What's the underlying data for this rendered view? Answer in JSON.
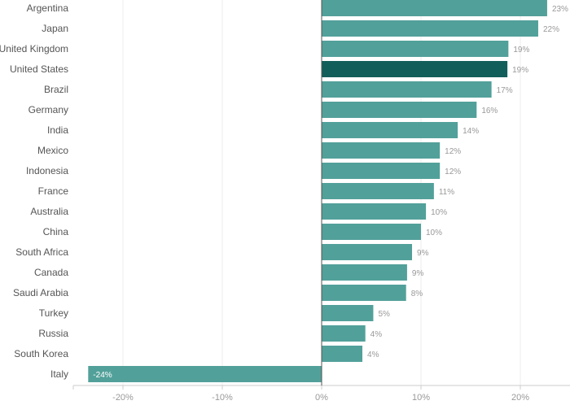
{
  "chart_data": {
    "type": "bar",
    "orientation": "horizontal",
    "categories": [
      "Argentina",
      "Japan",
      "United Kingdom",
      "United States",
      "Brazil",
      "Germany",
      "India",
      "Mexico",
      "Indonesia",
      "France",
      "Australia",
      "China",
      "South Africa",
      "Canada",
      "Saudi Arabia",
      "Turkey",
      "Russia",
      "South Korea",
      "Italy"
    ],
    "values": [
      22.7,
      21.8,
      18.8,
      18.7,
      17.1,
      15.6,
      13.7,
      11.9,
      11.9,
      11.3,
      10.5,
      10.0,
      9.1,
      8.6,
      8.5,
      5.2,
      4.4,
      4.1,
      -23.5
    ],
    "data_labels": [
      "23%",
      "22%",
      "19%",
      "19%",
      "17%",
      "16%",
      "14%",
      "12%",
      "12%",
      "11%",
      "10%",
      "10%",
      "9%",
      "9%",
      "8%",
      "5%",
      "4%",
      "4%",
      "-24%"
    ],
    "highlighted": "United States",
    "xlim": [
      -25,
      25
    ],
    "xticks": [
      -20,
      -10,
      0,
      10,
      20
    ],
    "xtick_labels": [
      "-20%",
      "-10%",
      "0%",
      "10%",
      "20%"
    ],
    "grid": "vertical",
    "colors": {
      "bar": "#52a09a",
      "highlight": "#125e5a",
      "zero_line": "#555555",
      "grid": "#eeeeee"
    },
    "title": "",
    "xlabel": "",
    "ylabel": ""
  }
}
